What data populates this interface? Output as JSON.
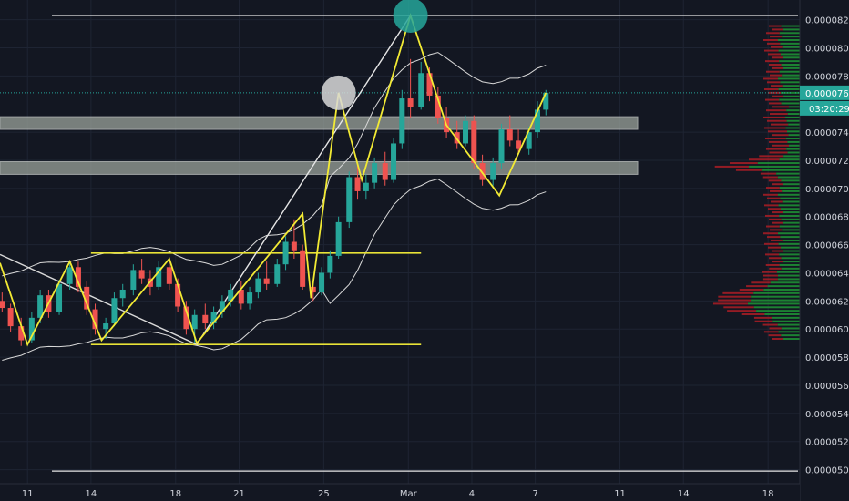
{
  "chart_data": {
    "type": "candlestick",
    "x_ticks": [
      {
        "label": "11",
        "day": -7
      },
      {
        "label": "14",
        "day": -4
      },
      {
        "label": "18",
        "day": 0
      },
      {
        "label": "21",
        "day": 3
      },
      {
        "label": "25",
        "day": 7
      },
      {
        "label": "Mar",
        "day": 11
      },
      {
        "label": "4",
        "day": 14
      },
      {
        "label": "7",
        "day": 17
      },
      {
        "label": "11",
        "day": 21
      },
      {
        "label": "14",
        "day": 24
      },
      {
        "label": "18",
        "day": 28
      }
    ],
    "y_ticks": [
      "0.0000820",
      "0.0000800",
      "0.0000780",
      "0.0000740",
      "0.0000720",
      "0.0000700",
      "0.0000680",
      "0.0000660",
      "0.0000640",
      "0.0000620",
      "0.0000600",
      "0.0000580",
      "0.0000560",
      "0.0000540",
      "0.0000520",
      "0.0000500"
    ],
    "ylim": [
      4.9e-05,
      8.34e-05
    ],
    "xlim": [
      -8.3,
      29.5
    ],
    "last_price": "0.0000768",
    "countdown": "03:20:29",
    "candles": [
      [
        -8.2,
        6.2e-05,
        6.26e-05,
        6.12e-05,
        6.15e-05
      ],
      [
        -7.8,
        6.15e-05,
        6.18e-05,
        5.98e-05,
        6.02e-05
      ],
      [
        -7.3,
        6.02e-05,
        6.08e-05,
        5.88e-05,
        5.92e-05
      ],
      [
        -6.8,
        5.92e-05,
        6.12e-05,
        5.9e-05,
        6.08e-05
      ],
      [
        -6.4,
        6.08e-05,
        6.28e-05,
        6.04e-05,
        6.24e-05
      ],
      [
        -6.0,
        6.24e-05,
        6.28e-05,
        6.08e-05,
        6.12e-05
      ],
      [
        -5.5,
        6.12e-05,
        6.35e-05,
        6.1e-05,
        6.32e-05
      ],
      [
        -5.0,
        6.32e-05,
        6.48e-05,
        6.28e-05,
        6.44e-05
      ],
      [
        -4.6,
        6.44e-05,
        6.48e-05,
        6.26e-05,
        6.3e-05
      ],
      [
        -4.2,
        6.3e-05,
        6.34e-05,
        6.1e-05,
        6.14e-05
      ],
      [
        -3.8,
        6.14e-05,
        6.18e-05,
        5.96e-05,
        6e-05
      ],
      [
        -3.3,
        6e-05,
        6.08e-05,
        5.93e-05,
        6.04e-05
      ],
      [
        -2.9,
        6.04e-05,
        6.26e-05,
        6.02e-05,
        6.22e-05
      ],
      [
        -2.5,
        6.22e-05,
        6.32e-05,
        6.16e-05,
        6.28e-05
      ],
      [
        -2.0,
        6.28e-05,
        6.46e-05,
        6.24e-05,
        6.42e-05
      ],
      [
        -1.6,
        6.42e-05,
        6.5e-05,
        6.32e-05,
        6.36e-05
      ],
      [
        -1.2,
        6.36e-05,
        6.42e-05,
        6.24e-05,
        6.3e-05
      ],
      [
        -0.8,
        6.3e-05,
        6.48e-05,
        6.28e-05,
        6.44e-05
      ],
      [
        -0.3,
        6.44e-05,
        6.5e-05,
        6.28e-05,
        6.32e-05
      ],
      [
        0.1,
        6.32e-05,
        6.36e-05,
        6.12e-05,
        6.16e-05
      ],
      [
        0.5,
        6.16e-05,
        6.2e-05,
        5.96e-05,
        6e-05
      ],
      [
        0.9,
        6e-05,
        6.14e-05,
        5.9e-05,
        6.1e-05
      ],
      [
        1.4,
        6.1e-05,
        6.18e-05,
        6e-05,
        6.04e-05
      ],
      [
        1.8,
        6.04e-05,
        6.16e-05,
        6e-05,
        6.12e-05
      ],
      [
        2.2,
        6.12e-05,
        6.24e-05,
        6.08e-05,
        6.2e-05
      ],
      [
        2.6,
        6.2e-05,
        6.32e-05,
        6.16e-05,
        6.28e-05
      ],
      [
        3.1,
        6.28e-05,
        6.34e-05,
        6.14e-05,
        6.18e-05
      ],
      [
        3.5,
        6.18e-05,
        6.3e-05,
        6.14e-05,
        6.26e-05
      ],
      [
        3.9,
        6.26e-05,
        6.4e-05,
        6.22e-05,
        6.36e-05
      ],
      [
        4.3,
        6.36e-05,
        6.48e-05,
        6.28e-05,
        6.32e-05
      ],
      [
        4.8,
        6.32e-05,
        6.5e-05,
        6.3e-05,
        6.46e-05
      ],
      [
        5.2,
        6.46e-05,
        6.66e-05,
        6.42e-05,
        6.62e-05
      ],
      [
        5.6,
        6.62e-05,
        6.78e-05,
        6.5e-05,
        6.56e-05
      ],
      [
        6.0,
        6.56e-05,
        6.6e-05,
        6.28e-05,
        6.3e-05
      ],
      [
        6.5,
        6.3e-05,
        6.34e-05,
        6.2e-05,
        6.26e-05
      ],
      [
        6.9,
        6.26e-05,
        6.44e-05,
        6.24e-05,
        6.4e-05
      ],
      [
        7.3,
        6.4e-05,
        6.56e-05,
        6.36e-05,
        6.52e-05
      ],
      [
        7.7,
        6.52e-05,
        6.8e-05,
        6.5e-05,
        6.76e-05
      ],
      [
        8.2,
        6.76e-05,
        7.12e-05,
        6.72e-05,
        7.08e-05
      ],
      [
        8.6,
        7.08e-05,
        7.16e-05,
        6.92e-05,
        6.98e-05
      ],
      [
        9.0,
        6.98e-05,
        7.1e-05,
        6.92e-05,
        7.04e-05
      ],
      [
        9.4,
        7.04e-05,
        7.22e-05,
        7e-05,
        7.18e-05
      ],
      [
        9.9,
        7.18e-05,
        7.26e-05,
        7.02e-05,
        7.06e-05
      ],
      [
        10.3,
        7.06e-05,
        7.36e-05,
        7.04e-05,
        7.32e-05
      ],
      [
        10.7,
        7.32e-05,
        7.7e-05,
        7.28e-05,
        7.64e-05
      ],
      [
        11.1,
        7.64e-05,
        7.92e-05,
        7.5e-05,
        7.58e-05
      ],
      [
        11.6,
        7.58e-05,
        7.9e-05,
        7.56e-05,
        7.82e-05
      ],
      [
        12.0,
        7.82e-05,
        7.86e-05,
        7.62e-05,
        7.66e-05
      ],
      [
        12.4,
        7.66e-05,
        7.72e-05,
        7.46e-05,
        7.5e-05
      ],
      [
        12.8,
        7.5e-05,
        7.58e-05,
        7.36e-05,
        7.4e-05
      ],
      [
        13.3,
        7.4e-05,
        7.48e-05,
        7.28e-05,
        7.32e-05
      ],
      [
        13.7,
        7.32e-05,
        7.52e-05,
        7.3e-05,
        7.48e-05
      ],
      [
        14.1,
        7.48e-05,
        7.52e-05,
        7.14e-05,
        7.18e-05
      ],
      [
        14.5,
        7.18e-05,
        7.24e-05,
        7.02e-05,
        7.06e-05
      ],
      [
        15.0,
        7.06e-05,
        7.22e-05,
        7.02e-05,
        7.18e-05
      ],
      [
        15.4,
        7.18e-05,
        7.46e-05,
        7.14e-05,
        7.42e-05
      ],
      [
        15.8,
        7.42e-05,
        7.52e-05,
        7.3e-05,
        7.34e-05
      ],
      [
        16.2,
        7.34e-05,
        7.42e-05,
        7.24e-05,
        7.28e-05
      ],
      [
        16.7,
        7.28e-05,
        7.44e-05,
        7.24e-05,
        7.4e-05
      ],
      [
        17.1,
        7.4e-05,
        7.62e-05,
        7.36e-05,
        7.56e-05
      ],
      [
        17.5,
        7.56e-05,
        7.7e-05,
        7.52e-05,
        7.68e-05
      ]
    ],
    "horizontal_levels": [
      {
        "label": "top",
        "price": 8.23e-05
      },
      {
        "label": "bottom",
        "price": 4.99e-05
      }
    ],
    "zones": [
      {
        "from": 7.42e-05,
        "to": 7.51e-05
      },
      {
        "from": 7.1e-05,
        "to": 7.19e-05
      }
    ],
    "pattern_lines": [
      [
        -8.3,
        6.47e-05
      ],
      [
        -7.0,
        5.89e-05
      ],
      [
        -5.0,
        6.48e-05
      ],
      [
        -3.5,
        5.92e-05
      ],
      [
        -0.3,
        6.5e-05
      ],
      [
        1.0,
        5.9e-05
      ],
      [
        6.0,
        6.82e-05
      ],
      [
        6.4,
        6.22e-05
      ],
      [
        7.7,
        7.68e-05
      ],
      [
        8.8,
        7.06e-05
      ],
      [
        11.1,
        8.23e-05
      ],
      [
        12.8,
        7.45e-05
      ],
      [
        15.3,
        6.95e-05
      ],
      [
        17.5,
        7.68e-05
      ]
    ],
    "channel_lines": [
      {
        "from": [
          -4.0,
          6.54e-05
        ],
        "to": [
          11.6,
          6.54e-05
        ]
      },
      {
        "from": [
          -4.0,
          5.89e-05
        ],
        "to": [
          11.6,
          5.89e-05
        ]
      }
    ],
    "cross_line": {
      "from": [
        -8.3,
        6.53e-05
      ],
      "to": [
        1.0,
        5.89e-05
      ]
    },
    "apex_line": [
      [
        1.0,
        5.89e-05
      ],
      [
        11.1,
        8.23e-05
      ]
    ],
    "circles": [
      {
        "day": 11.1,
        "price": 8.23e-05,
        "color": "#26a69a"
      },
      {
        "day": 7.7,
        "price": 7.68e-05,
        "color": "#d9d9d9"
      }
    ]
  }
}
